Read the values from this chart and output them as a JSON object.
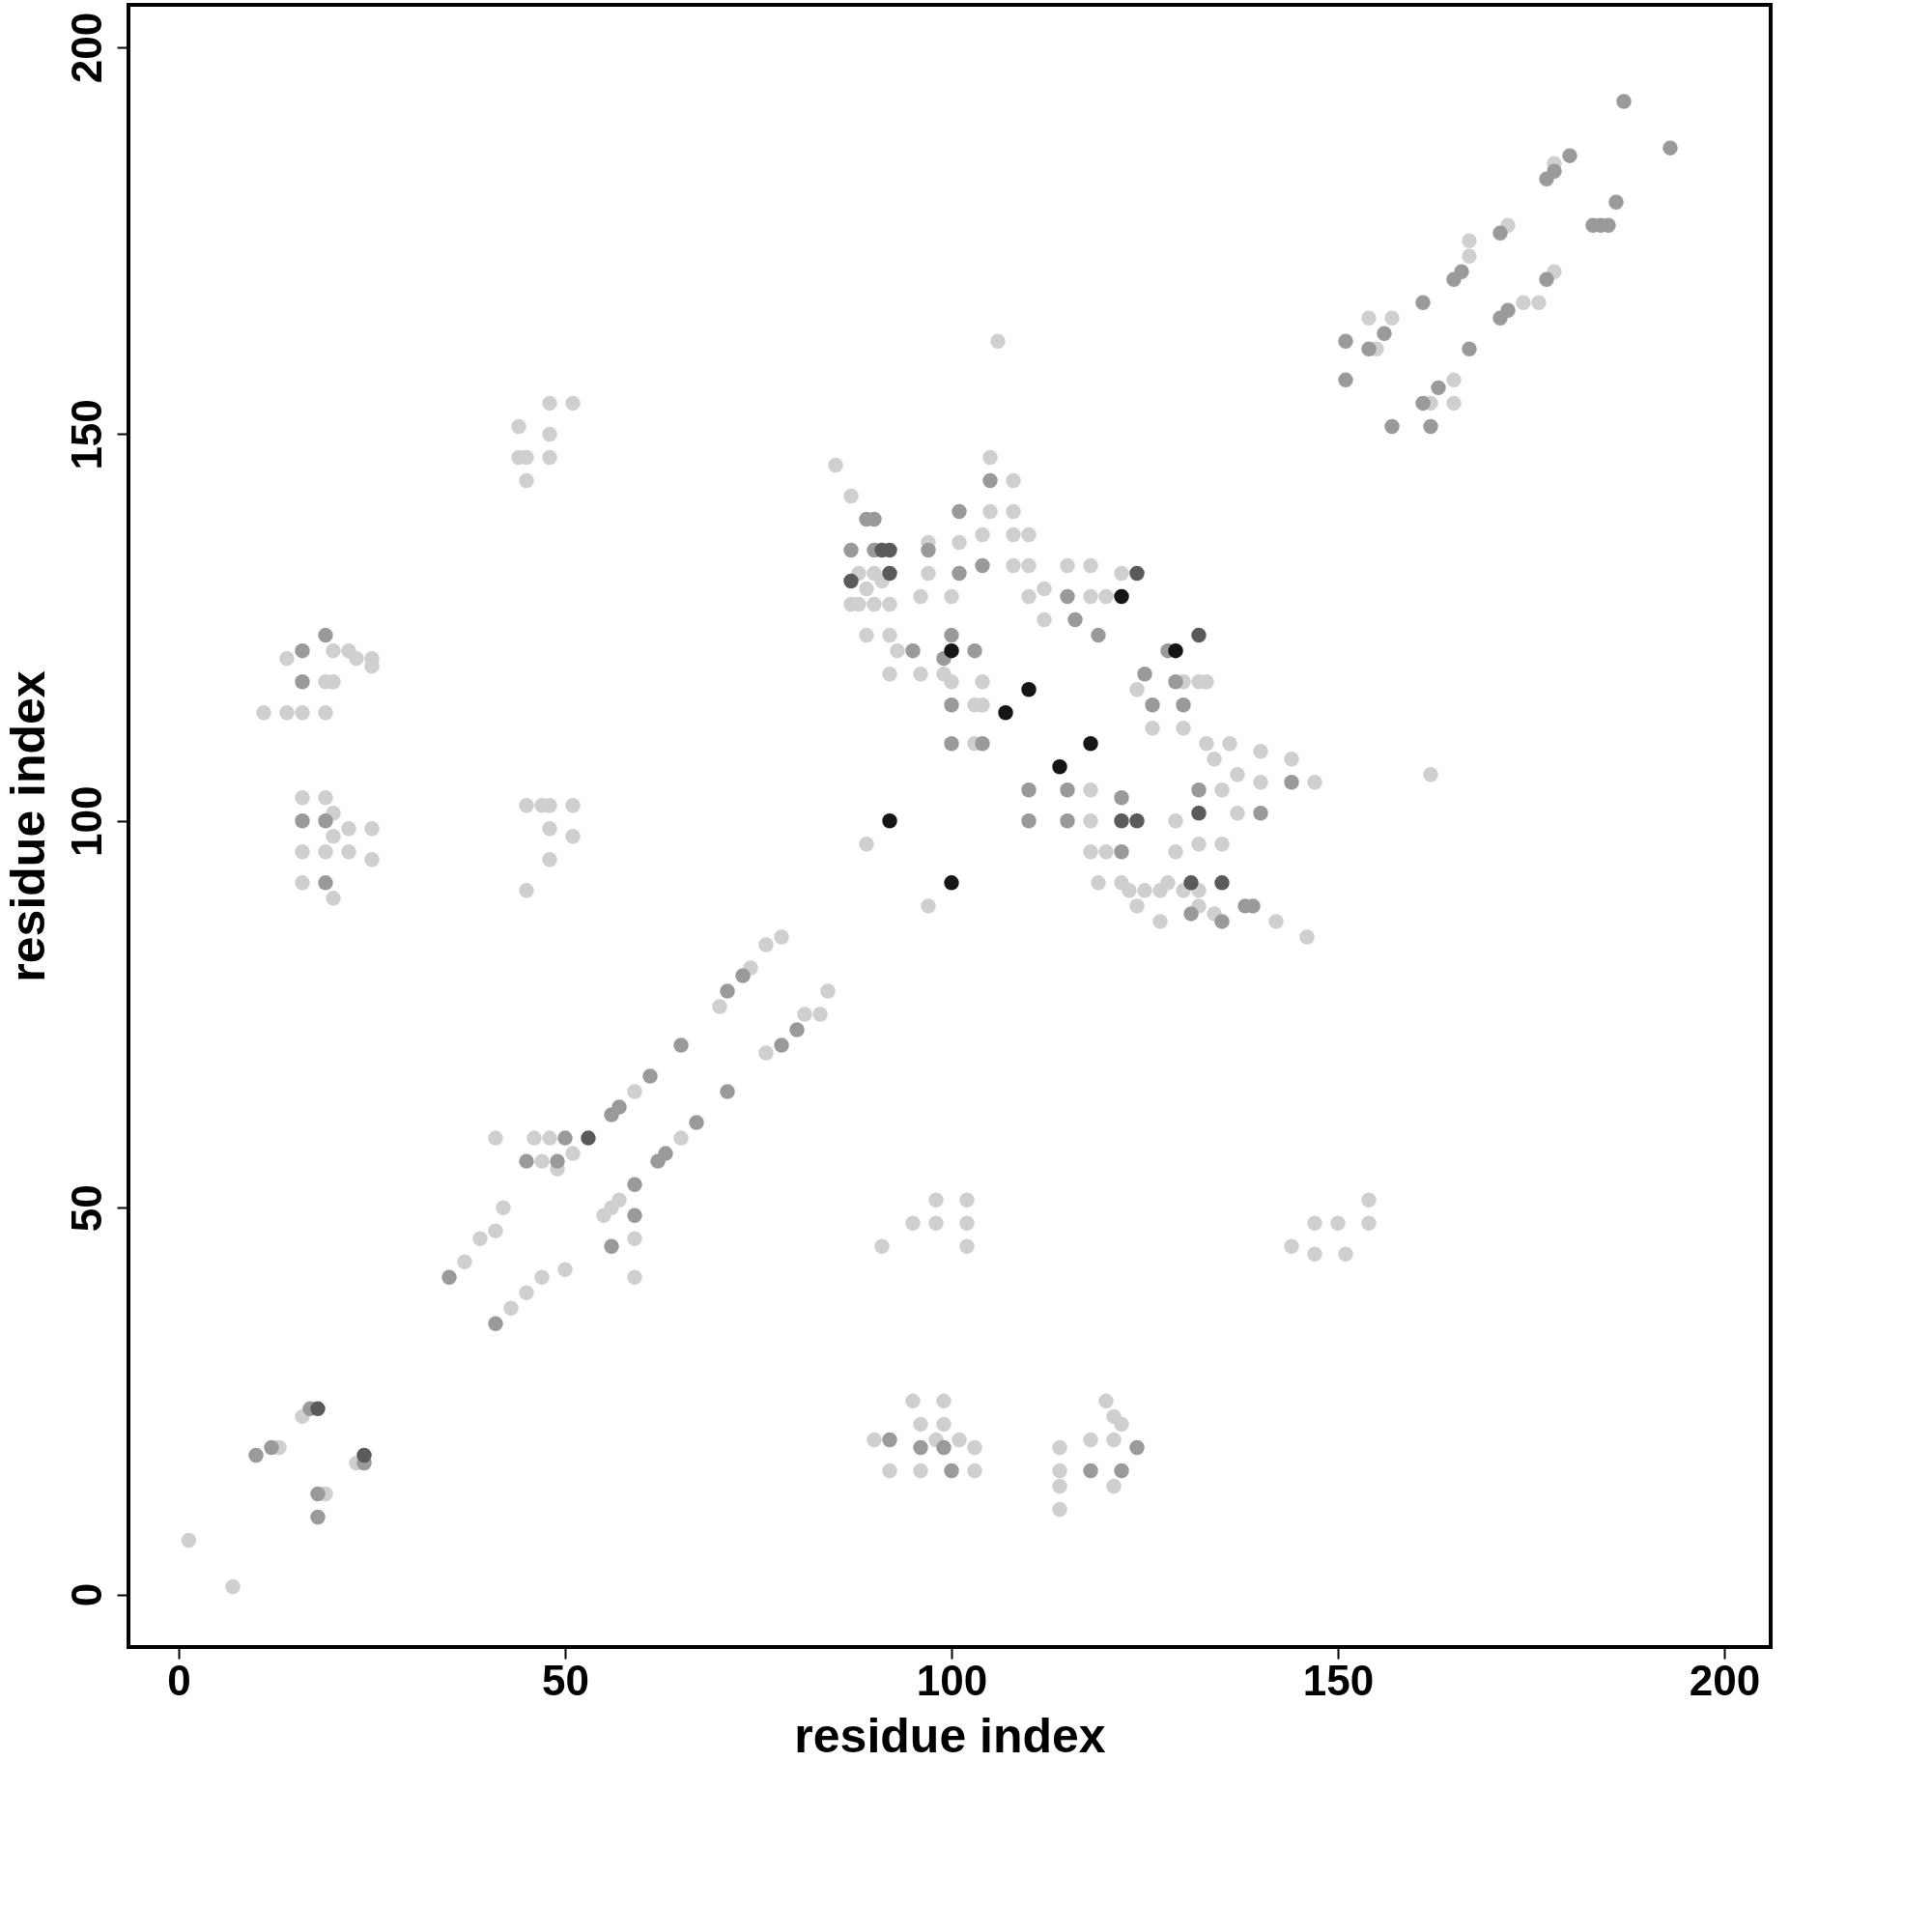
{
  "chart_data": {
    "type": "scatter",
    "xlabel": "residue index",
    "ylabel": "residue index",
    "xlim": [
      -6.5,
      206
    ],
    "ylim": [
      -6.8,
      205.5
    ],
    "xticks": [
      0,
      50,
      100,
      150,
      200
    ],
    "yticks": [
      0,
      50,
      100,
      150,
      200
    ],
    "grid": false,
    "marker": "circle",
    "series": [
      {
        "color": "#cfcfcf",
        "x": [
          1.3,
          7,
          13,
          16,
          19,
          23,
          37,
          39,
          43,
          41,
          42,
          41,
          45,
          47,
          50,
          47,
          46,
          48,
          51,
          49,
          55,
          56,
          57,
          59,
          59,
          59,
          65,
          70,
          74,
          76,
          76,
          78,
          81,
          83,
          84,
          90,
          92,
          95,
          96,
          96,
          98,
          99,
          99,
          101,
          103,
          103,
          114,
          114,
          114,
          114,
          118,
          120,
          121,
          121,
          121,
          122,
          91,
          95,
          98,
          98,
          102,
          102,
          102,
          144,
          147,
          147,
          150,
          151,
          154,
          154,
          16,
          16,
          16,
          19,
          19,
          20,
          20,
          20,
          22,
          22,
          25,
          25,
          11,
          14,
          16,
          19,
          14,
          20,
          20,
          19,
          22,
          23,
          25,
          25,
          45,
          47,
          48,
          48,
          48,
          51,
          51,
          45,
          44,
          44,
          45,
          45,
          48,
          48,
          48,
          51,
          154,
          155,
          157,
          162,
          165,
          165,
          167,
          167,
          172,
          174,
          176,
          178,
          178,
          106,
          162,
          85,
          87,
          88,
          90,
          88,
          90,
          92,
          89,
          92,
          93,
          87,
          89,
          91,
          92,
          96,
          96,
          97,
          97,
          99,
          100,
          100,
          101,
          103,
          103,
          104,
          104,
          104,
          105,
          105,
          108,
          108,
          108,
          108,
          110,
          110,
          110,
          112,
          112,
          115,
          118,
          118,
          118,
          118,
          118,
          120,
          120,
          119,
          122,
          122,
          124,
          126,
          130,
          129,
          129,
          130,
          132,
          133,
          133,
          132,
          134,
          135,
          135,
          136,
          137,
          137,
          140,
          140,
          144,
          147,
          123,
          124,
          127,
          127,
          128,
          130,
          132,
          134,
          142,
          146,
          132,
          125,
          89,
          97
        ],
        "values": [
          7,
          1,
          19,
          23,
          13,
          17,
          43,
          46,
          37,
          59,
          50,
          47,
          39,
          41,
          42,
          56,
          59,
          59,
          57,
          55,
          49,
          50,
          51,
          46,
          41,
          65,
          59,
          76,
          81,
          70,
          84,
          85,
          75,
          75,
          78,
          20,
          16,
          25,
          22,
          16,
          20,
          25,
          22,
          20,
          19,
          16,
          19,
          16,
          14,
          11,
          20,
          25,
          23,
          20,
          14,
          22,
          45,
          48,
          51,
          48,
          51,
          48,
          45,
          45,
          48,
          44,
          48,
          44,
          51,
          48,
          103,
          96,
          92,
          103,
          96,
          90,
          101,
          98,
          99,
          96,
          99,
          95,
          114,
          114,
          114,
          114,
          121,
          122,
          118,
          118,
          122,
          121,
          121,
          120,
          102,
          102,
          102,
          99,
          95,
          102,
          98,
          91,
          151,
          147,
          147,
          144,
          154,
          150,
          147,
          154,
          165,
          161,
          165,
          154,
          157,
          154,
          173,
          175,
          177,
          167,
          167,
          171,
          185,
          162,
          106,
          146,
          142,
          132,
          132,
          128,
          128,
          128,
          124,
          124,
          122,
          128,
          130,
          131,
          119,
          129,
          119,
          136,
          132,
          119,
          129,
          118,
          136,
          115,
          110,
          118,
          115,
          137,
          147,
          140,
          144,
          140,
          137,
          133,
          137,
          133,
          129,
          130,
          126,
          133,
          133,
          129,
          104,
          100,
          96,
          129,
          96,
          92,
          132,
          92,
          117,
          112,
          118,
          100,
          96,
          112,
          118,
          118,
          110,
          97,
          108,
          104,
          97,
          110,
          106,
          101,
          109,
          105,
          108,
          105,
          91,
          89,
          87,
          91,
          92,
          91,
          89,
          88,
          87,
          85,
          91,
          91,
          97,
          89
        ]
      },
      {
        "color": "#9a9a9a",
        "x": [
          10,
          12,
          17,
          18,
          18,
          24,
          35,
          41,
          45,
          49,
          50,
          56,
          59,
          59,
          56,
          57,
          61,
          62,
          63,
          67,
          65,
          71,
          71,
          73,
          78,
          80,
          92,
          96,
          99,
          100,
          118,
          122,
          124,
          16,
          19,
          19,
          16,
          16,
          19,
          151,
          151,
          154,
          156,
          157,
          161,
          161,
          162,
          163,
          165,
          166,
          167,
          171,
          172,
          171,
          177,
          177,
          178,
          180,
          183,
          184,
          185,
          186,
          187,
          193,
          89,
          90,
          87,
          90,
          95,
          97,
          99,
          100,
          100,
          100,
          101,
          101,
          103,
          104,
          104,
          105,
          110,
          110,
          115,
          116,
          115,
          115,
          119,
          122,
          122,
          125,
          126,
          128,
          129,
          130,
          132,
          140,
          144,
          131,
          135,
          138,
          139
        ],
        "values": [
          18,
          19,
          24,
          13,
          10,
          17,
          41,
          35,
          56,
          56,
          59,
          45,
          53,
          49,
          62,
          63,
          67,
          56,
          57,
          61,
          71,
          78,
          65,
          80,
          71,
          73,
          20,
          19,
          19,
          16,
          16,
          16,
          19,
          100,
          100,
          92,
          122,
          118,
          124,
          162,
          157,
          161,
          163,
          151,
          167,
          154,
          151,
          156,
          170,
          171,
          161,
          165,
          166,
          176,
          170,
          183,
          184,
          186,
          177,
          177,
          177,
          180,
          193,
          187,
          139,
          139,
          135,
          135,
          122,
          135,
          121,
          124,
          115,
          110,
          140,
          132,
          122,
          110,
          133,
          144,
          104,
          100,
          129,
          126,
          104,
          100,
          124,
          103,
          96,
          119,
          115,
          122,
          118,
          115,
          104,
          101,
          105,
          88,
          87,
          89,
          89
        ]
      },
      {
        "color": "#5a5a5a",
        "x": [
          18,
          24,
          53,
          91,
          92,
          87,
          92,
          124,
          122,
          124,
          132,
          132,
          131,
          135
        ],
        "values": [
          24,
          18,
          59,
          135,
          135,
          131,
          132,
          132,
          100,
          100,
          124,
          101,
          92,
          92
        ]
      },
      {
        "color": "#151515",
        "x": [
          107,
          110,
          114,
          118,
          122,
          129,
          100,
          92,
          100
        ],
        "values": [
          114,
          117,
          107,
          110,
          129,
          122,
          122,
          100,
          92
        ]
      }
    ]
  }
}
